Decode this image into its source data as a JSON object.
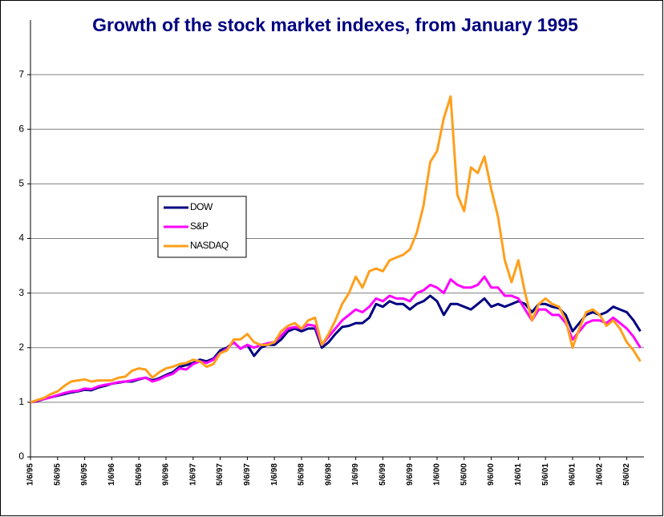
{
  "chart_data": {
    "type": "line",
    "title": "Growth of the stock market indexes, from January 1995",
    "categories": [
      "1/6/95",
      null,
      null,
      null,
      "5/6/95",
      null,
      null,
      null,
      "9/6/95",
      null,
      null,
      null,
      "1/6/96",
      null,
      null,
      null,
      "5/6/96",
      null,
      null,
      null,
      "9/6/96",
      null,
      null,
      null,
      "1/6/97",
      null,
      null,
      null,
      "5/6/97",
      null,
      null,
      null,
      "9/6/97",
      null,
      null,
      null,
      "1/6/98",
      null,
      null,
      null,
      "5/6/98",
      null,
      null,
      null,
      "9/6/98",
      null,
      null,
      null,
      "1/6/99",
      null,
      null,
      null,
      "5/6/99",
      null,
      null,
      null,
      "9/6/99",
      null,
      null,
      null,
      "1/6/00",
      null,
      null,
      null,
      "5/6/00",
      null,
      null,
      null,
      "9/6/00",
      null,
      null,
      null,
      "1/6/01",
      null,
      null,
      null,
      "5/6/01",
      null,
      null,
      null,
      "9/6/01",
      null,
      null,
      null,
      "1/6/02",
      null,
      null,
      null,
      "5/6/02",
      null,
      null
    ],
    "series": [
      {
        "name": "DOW",
        "color": "#000080",
        "values": [
          1.0,
          1.02,
          1.06,
          1.09,
          1.12,
          1.15,
          1.18,
          1.2,
          1.23,
          1.22,
          1.27,
          1.3,
          1.34,
          1.36,
          1.38,
          1.38,
          1.42,
          1.45,
          1.4,
          1.44,
          1.5,
          1.55,
          1.65,
          1.68,
          1.72,
          1.78,
          1.75,
          1.8,
          1.95,
          2.0,
          2.1,
          1.98,
          2.05,
          1.85,
          2.0,
          2.05,
          2.05,
          2.15,
          2.3,
          2.35,
          2.3,
          2.35,
          2.35,
          2.0,
          2.1,
          2.25,
          2.38,
          2.4,
          2.45,
          2.45,
          2.55,
          2.8,
          2.75,
          2.85,
          2.8,
          2.8,
          2.7,
          2.8,
          2.85,
          2.95,
          2.85,
          2.6,
          2.8,
          2.8,
          2.75,
          2.7,
          2.8,
          2.9,
          2.75,
          2.8,
          2.75,
          2.8,
          2.85,
          2.8,
          2.65,
          2.8,
          2.8,
          2.75,
          2.72,
          2.6,
          2.3,
          2.45,
          2.6,
          2.65,
          2.6,
          2.65,
          2.75,
          2.7,
          2.65,
          2.5,
          2.3
        ]
      },
      {
        "name": "S&P",
        "color": "#ff00ff",
        "values": [
          1.0,
          1.03,
          1.06,
          1.09,
          1.13,
          1.17,
          1.2,
          1.21,
          1.25,
          1.24,
          1.29,
          1.32,
          1.34,
          1.37,
          1.38,
          1.4,
          1.43,
          1.45,
          1.38,
          1.42,
          1.48,
          1.52,
          1.62,
          1.6,
          1.7,
          1.75,
          1.72,
          1.78,
          1.9,
          1.98,
          2.1,
          1.98,
          2.05,
          2.0,
          2.05,
          2.08,
          2.1,
          2.22,
          2.35,
          2.38,
          2.35,
          2.42,
          2.4,
          2.05,
          2.2,
          2.35,
          2.5,
          2.6,
          2.7,
          2.65,
          2.75,
          2.9,
          2.85,
          2.95,
          2.9,
          2.9,
          2.85,
          3.0,
          3.05,
          3.15,
          3.1,
          3.0,
          3.25,
          3.15,
          3.1,
          3.1,
          3.15,
          3.3,
          3.1,
          3.1,
          2.95,
          2.95,
          2.9,
          2.7,
          2.5,
          2.7,
          2.7,
          2.6,
          2.6,
          2.45,
          2.15,
          2.3,
          2.45,
          2.5,
          2.5,
          2.45,
          2.55,
          2.45,
          2.35,
          2.2,
          2.0
        ]
      },
      {
        "name": "NASDAQ",
        "color": "#ff9f1c",
        "values": [
          1.0,
          1.04,
          1.08,
          1.15,
          1.2,
          1.3,
          1.38,
          1.4,
          1.42,
          1.38,
          1.4,
          1.4,
          1.4,
          1.45,
          1.47,
          1.58,
          1.62,
          1.6,
          1.45,
          1.55,
          1.62,
          1.65,
          1.7,
          1.72,
          1.78,
          1.75,
          1.65,
          1.7,
          1.9,
          1.95,
          2.15,
          2.15,
          2.25,
          2.1,
          2.05,
          2.05,
          2.1,
          2.3,
          2.4,
          2.45,
          2.35,
          2.5,
          2.55,
          2.05,
          2.25,
          2.5,
          2.8,
          3.0,
          3.3,
          3.1,
          3.4,
          3.45,
          3.4,
          3.6,
          3.65,
          3.7,
          3.8,
          4.1,
          4.6,
          5.4,
          5.6,
          6.2,
          6.6,
          4.8,
          4.5,
          5.3,
          5.2,
          5.5,
          4.9,
          4.4,
          3.6,
          3.2,
          3.6,
          3.0,
          2.5,
          2.8,
          2.9,
          2.8,
          2.75,
          2.5,
          2.0,
          2.35,
          2.65,
          2.7,
          2.6,
          2.4,
          2.5,
          2.35,
          2.1,
          1.95,
          1.75
        ]
      }
    ],
    "ylim": [
      0,
      8
    ],
    "yticks": [
      0,
      1,
      2,
      3,
      4,
      5,
      6,
      7
    ],
    "grid": true
  }
}
